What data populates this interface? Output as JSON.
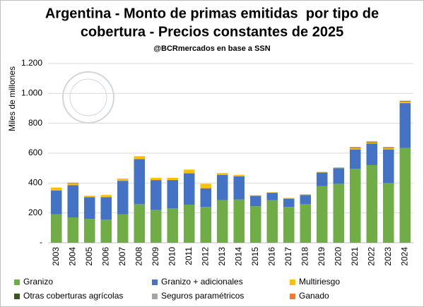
{
  "chart_data": {
    "type": "stacked_bar",
    "title": [
      "Argentina - Monto de primas emitidas  por tipo de",
      "cobertura - Precios constantes de 2025"
    ],
    "subtitle": "@BCRmercados en base a SSN",
    "y_label": "Miles de millones",
    "categories": [
      "2003",
      "2004",
      "2005",
      "2006",
      "2007",
      "2008",
      "2009",
      "2010",
      "2011",
      "2012",
      "2013",
      "2014",
      "2015",
      "2016",
      "2017",
      "2018",
      "2019",
      "2020",
      "2021",
      "2022",
      "2023",
      "2024"
    ],
    "series": [
      {
        "name": "Granizo",
        "color": "#70ad47",
        "values": [
          190,
          170,
          160,
          155,
          190,
          260,
          220,
          230,
          255,
          240,
          285,
          290,
          245,
          285,
          240,
          260,
          380,
          395,
          495,
          520,
          400,
          635
        ]
      },
      {
        "name": "Granizo + adicionales",
        "color": "#4472c4",
        "values": [
          160,
          215,
          145,
          150,
          225,
          300,
          200,
          190,
          210,
          125,
          170,
          155,
          70,
          50,
          55,
          60,
          90,
          105,
          130,
          145,
          225,
          300
        ]
      },
      {
        "name": "Multiriesgo",
        "color": "#ffc000",
        "values": [
          20,
          15,
          10,
          15,
          15,
          20,
          15,
          15,
          25,
          30,
          12,
          10,
          3,
          3,
          5,
          5,
          5,
          5,
          10,
          8,
          10,
          10
        ]
      },
      {
        "name": "Otras coberturas agrícolas",
        "color": "#385723",
        "values": [
          0,
          2,
          0,
          0,
          0,
          0,
          0,
          0,
          0,
          0,
          0,
          0,
          0,
          0,
          0,
          0,
          0,
          0,
          3,
          3,
          3,
          3
        ]
      },
      {
        "name": "Seguros paramétricos",
        "color": "#a5a5a5",
        "values": [
          0,
          0,
          0,
          0,
          0,
          0,
          0,
          0,
          0,
          0,
          0,
          0,
          0,
          0,
          0,
          0,
          0,
          0,
          2,
          2,
          2,
          2
        ]
      },
      {
        "name": "Ganado",
        "color": "#ed7d31",
        "values": [
          0,
          0,
          0,
          0,
          0,
          0,
          0,
          0,
          0,
          0,
          0,
          0,
          0,
          0,
          0,
          0,
          0,
          0,
          1,
          1,
          1,
          1
        ]
      }
    ],
    "ylim": [
      0,
      1200
    ],
    "yticks": [
      {
        "value": 0,
        "label": "-"
      },
      200,
      400,
      600,
      800,
      {
        "value": 1000,
        "label": "1.000"
      },
      {
        "value": 1200,
        "label": "1.200"
      }
    ],
    "grid": true
  }
}
